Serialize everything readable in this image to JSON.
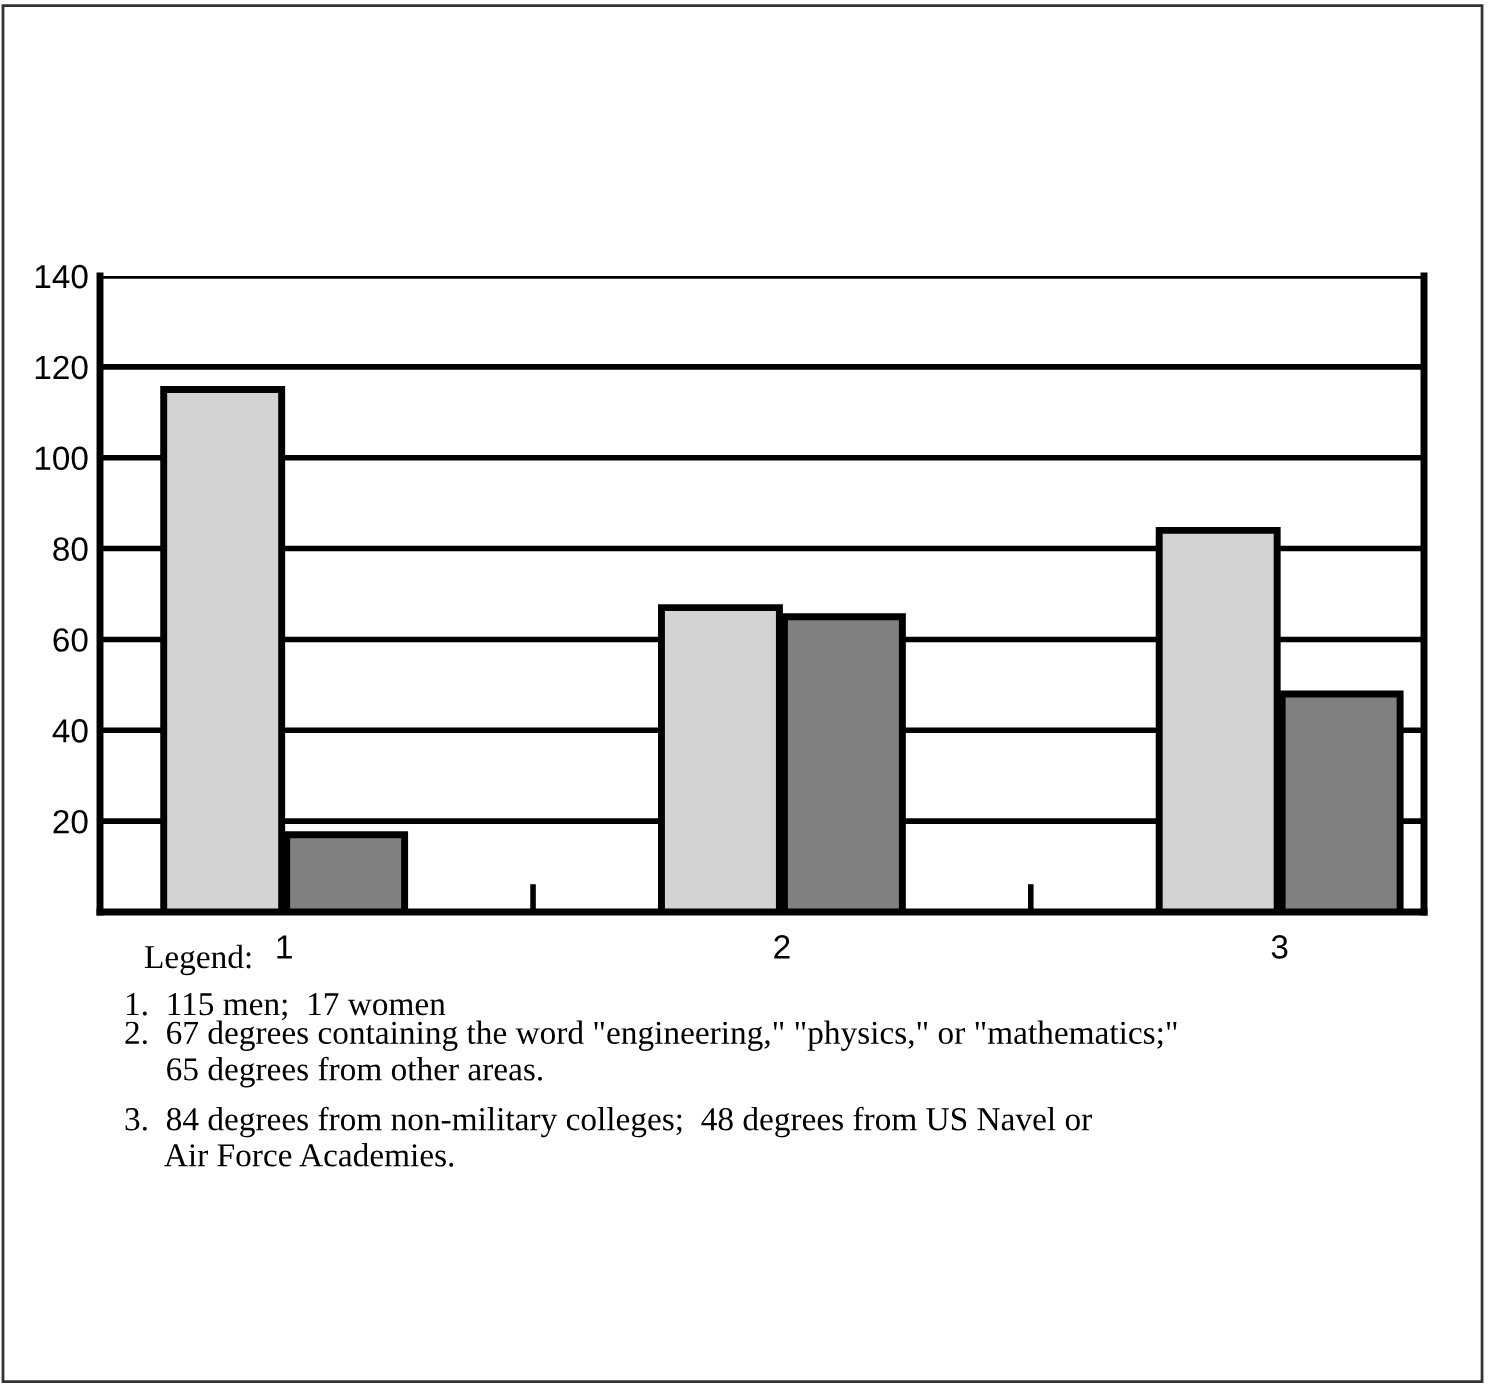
{
  "chart_data": {
    "type": "bar",
    "categories": [
      "1",
      "2",
      "3"
    ],
    "series": [
      {
        "color": "#d3d3d3",
        "values": [
          115,
          67,
          84
        ]
      },
      {
        "color": "#808080",
        "values": [
          17,
          65,
          48
        ]
      }
    ],
    "ylim": [
      0,
      140
    ],
    "yticks": [
      20,
      40,
      60,
      80,
      100,
      120,
      140
    ],
    "grid": "y",
    "legend": false,
    "annotations": [
      "Legend:",
      "1.  115 men;  17 women",
      "2.  67 degrees containing the word \"engineering,\" \"physics,\" or \"mathematics;\"\n     65 degrees from other areas.",
      "3.  84 degrees from non-military colleges;  48 degrees from US Navel or\n     Air Force Academies."
    ]
  }
}
